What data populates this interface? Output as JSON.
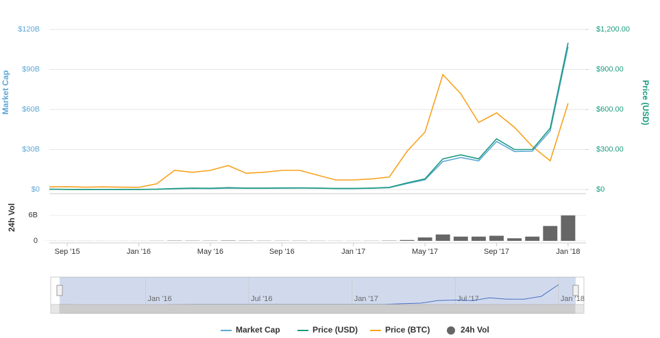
{
  "chart_data": [
    {
      "type": "line",
      "x": [
        "2015-08",
        "2015-09",
        "2015-10",
        "2015-11",
        "2015-12",
        "2016-01",
        "2016-02",
        "2016-03",
        "2016-04",
        "2016-05",
        "2016-06",
        "2016-07",
        "2016-08",
        "2016-09",
        "2016-10",
        "2016-11",
        "2016-12",
        "2017-01",
        "2017-02",
        "2017-03",
        "2017-04",
        "2017-05",
        "2017-06",
        "2017-07",
        "2017-08",
        "2017-09",
        "2017-10",
        "2017-11",
        "2017-12",
        "2018-01"
      ],
      "xlim": [
        "2015-08",
        "2018-02"
      ],
      "xticks": [
        {
          "value": "2015-09",
          "label": "Sep '15"
        },
        {
          "value": "2016-01",
          "label": "Jan '16"
        },
        {
          "value": "2016-05",
          "label": "May '16"
        },
        {
          "value": "2016-09",
          "label": "Sep '16"
        },
        {
          "value": "2017-01",
          "label": "Jan '17"
        },
        {
          "value": "2017-05",
          "label": "May '17"
        },
        {
          "value": "2017-09",
          "label": "Sep '17"
        },
        {
          "value": "2018-01",
          "label": "Jan '18"
        }
      ],
      "ylabel": "Market Cap",
      "y2label": "Price (USD)",
      "ylim": [
        0,
        140000000000
      ],
      "yticks": [
        {
          "value": 0,
          "label": "$0"
        },
        {
          "value": 30000000000,
          "label": "$30B"
        },
        {
          "value": 60000000000,
          "label": "$60B"
        },
        {
          "value": 90000000000,
          "label": "$90B"
        },
        {
          "value": 120000000000,
          "label": "$120B"
        }
      ],
      "y2lim": [
        0,
        1400
      ],
      "y2ticks": [
        {
          "value": 0,
          "label": "$0"
        },
        {
          "value": 300,
          "label": "$300.00"
        },
        {
          "value": 600,
          "label": "$600.00"
        },
        {
          "value": 900,
          "label": "$900.00"
        },
        {
          "value": 1200,
          "label": "$1,200.00"
        }
      ],
      "y3lim": [
        0,
        0.195
      ],
      "grid": true,
      "series": [
        {
          "name": "Market Cap",
          "color": "#5da7d6",
          "values": [
            200000000,
            90000000,
            50000000,
            70000000,
            70000000,
            70000000,
            180000000,
            550000000,
            860000000,
            720000000,
            1100000000,
            900000000,
            900000000,
            1000000000,
            1100000000,
            950000000,
            700000000,
            700000000,
            930000000,
            1400000000,
            4500000000,
            7300000000,
            21000000000,
            24000000000,
            21500000000,
            36000000000,
            28500000000,
            28700000000,
            44000000000,
            107000000000
          ]
        },
        {
          "name": "Price (USD)",
          "color": "#1a9a7e",
          "axis": "y2",
          "values": [
            2.8,
            1.2,
            0.7,
            0.9,
            0.9,
            0.95,
            2.3,
            7,
            11,
            9,
            14,
            11,
            11,
            12,
            13,
            11,
            8,
            8,
            10.7,
            16,
            50,
            80,
            230,
            260,
            230,
            380,
            300,
            300,
            460,
            1100
          ]
        },
        {
          "name": "Price (BTC)",
          "color": "#f7a21b",
          "axis": "y3",
          "values": [
            0.0028,
            0.003,
            0.0024,
            0.0028,
            0.0024,
            0.0023,
            0.006,
            0.02,
            0.018,
            0.02,
            0.025,
            0.017,
            0.018,
            0.02,
            0.02,
            0.015,
            0.01,
            0.01,
            0.011,
            0.013,
            0.04,
            0.06,
            0.12,
            0.1,
            0.07,
            0.08,
            0.065,
            0.045,
            0.03,
            0.09
          ]
        }
      ]
    },
    {
      "type": "bar",
      "ylabel": "24h Vol",
      "ylim": [
        0,
        10000000000
      ],
      "yticks": [
        0,
        {
          "value": 6000000000,
          "label": "6B"
        }
      ],
      "series": [
        {
          "name": "24h Vol",
          "color": "#666666",
          "values": [
            10000000,
            10000000,
            10000000,
            10000000,
            10000000,
            10000000,
            30000000,
            60000000,
            50000000,
            50000000,
            80000000,
            60000000,
            40000000,
            40000000,
            40000000,
            30000000,
            20000000,
            20000000,
            30000000,
            60000000,
            200000000,
            800000000,
            1500000000,
            1000000000,
            1000000000,
            1200000000,
            600000000,
            1000000000,
            3500000000,
            6000000000
          ]
        }
      ]
    }
  ],
  "navigator": {
    "xticks": [
      {
        "value": "2016-01",
        "label": "Jan '16"
      },
      {
        "value": "2016-07",
        "label": "Jul '16"
      },
      {
        "value": "2017-01",
        "label": "Jan '17"
      },
      {
        "value": "2017-07",
        "label": "Jul '17"
      },
      {
        "value": "2018-01",
        "label": "Jan '18"
      }
    ]
  }
}
